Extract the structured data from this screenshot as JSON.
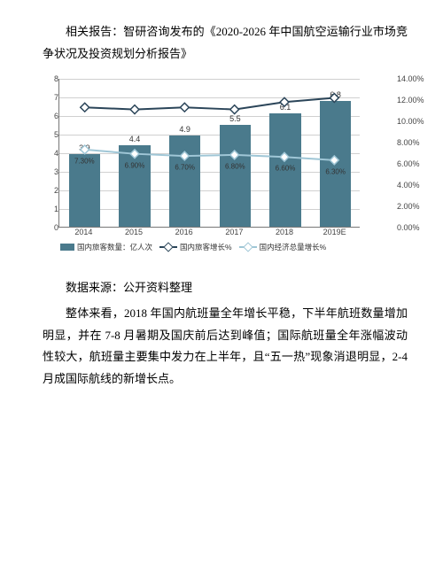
{
  "intro": {
    "text": "相关报告：智研咨询发布的《2020-2026 年中国航空运输行业市场竞争状况及投资规划分析报告》"
  },
  "chart": {
    "type": "bar+line",
    "categories": [
      "2014",
      "2015",
      "2016",
      "2017",
      "2018",
      "2019E"
    ],
    "left_axis": {
      "min": 0,
      "max": 8,
      "step": 1
    },
    "right_axis": {
      "min": 0,
      "max": 0.14,
      "step": 0.02,
      "format": "percent"
    },
    "bars": {
      "label": "国内旅客数量：亿人次",
      "color": "#4a7a8c",
      "values": [
        3.9,
        4.4,
        4.9,
        5.5,
        6.1,
        6.8
      ]
    },
    "line1": {
      "label": "国内旅客增长%",
      "color": "#2b4559",
      "marker_fill": "#ffffff",
      "values": [
        0.113,
        0.111,
        0.113,
        0.111,
        0.118,
        0.122
      ]
    },
    "line2": {
      "label": "国内经济总量增长%",
      "color": "#9fc6d6",
      "marker_fill": "#ffffff",
      "values": [
        0.073,
        0.069,
        0.067,
        0.068,
        0.066,
        0.063
      ],
      "point_labels": [
        "7.30%",
        "6.90%",
        "6.70%",
        "6.80%",
        "6.60%",
        "6.30%"
      ]
    },
    "grid_color": "#d0d0d0",
    "background": "#ffffff"
  },
  "source": {
    "text": "数据来源：公开资料整理"
  },
  "body": {
    "text": "整体来看，2018 年国内航班量全年增长平稳，下半年航班数量增加明显，并在 7-8 月暑期及国庆前后达到峰值；国际航班量全年涨幅波动性较大，航班量主要集中发力在上半年，且“五一热”现象消退明显，2-4 月成国际航线的新增长点。"
  }
}
